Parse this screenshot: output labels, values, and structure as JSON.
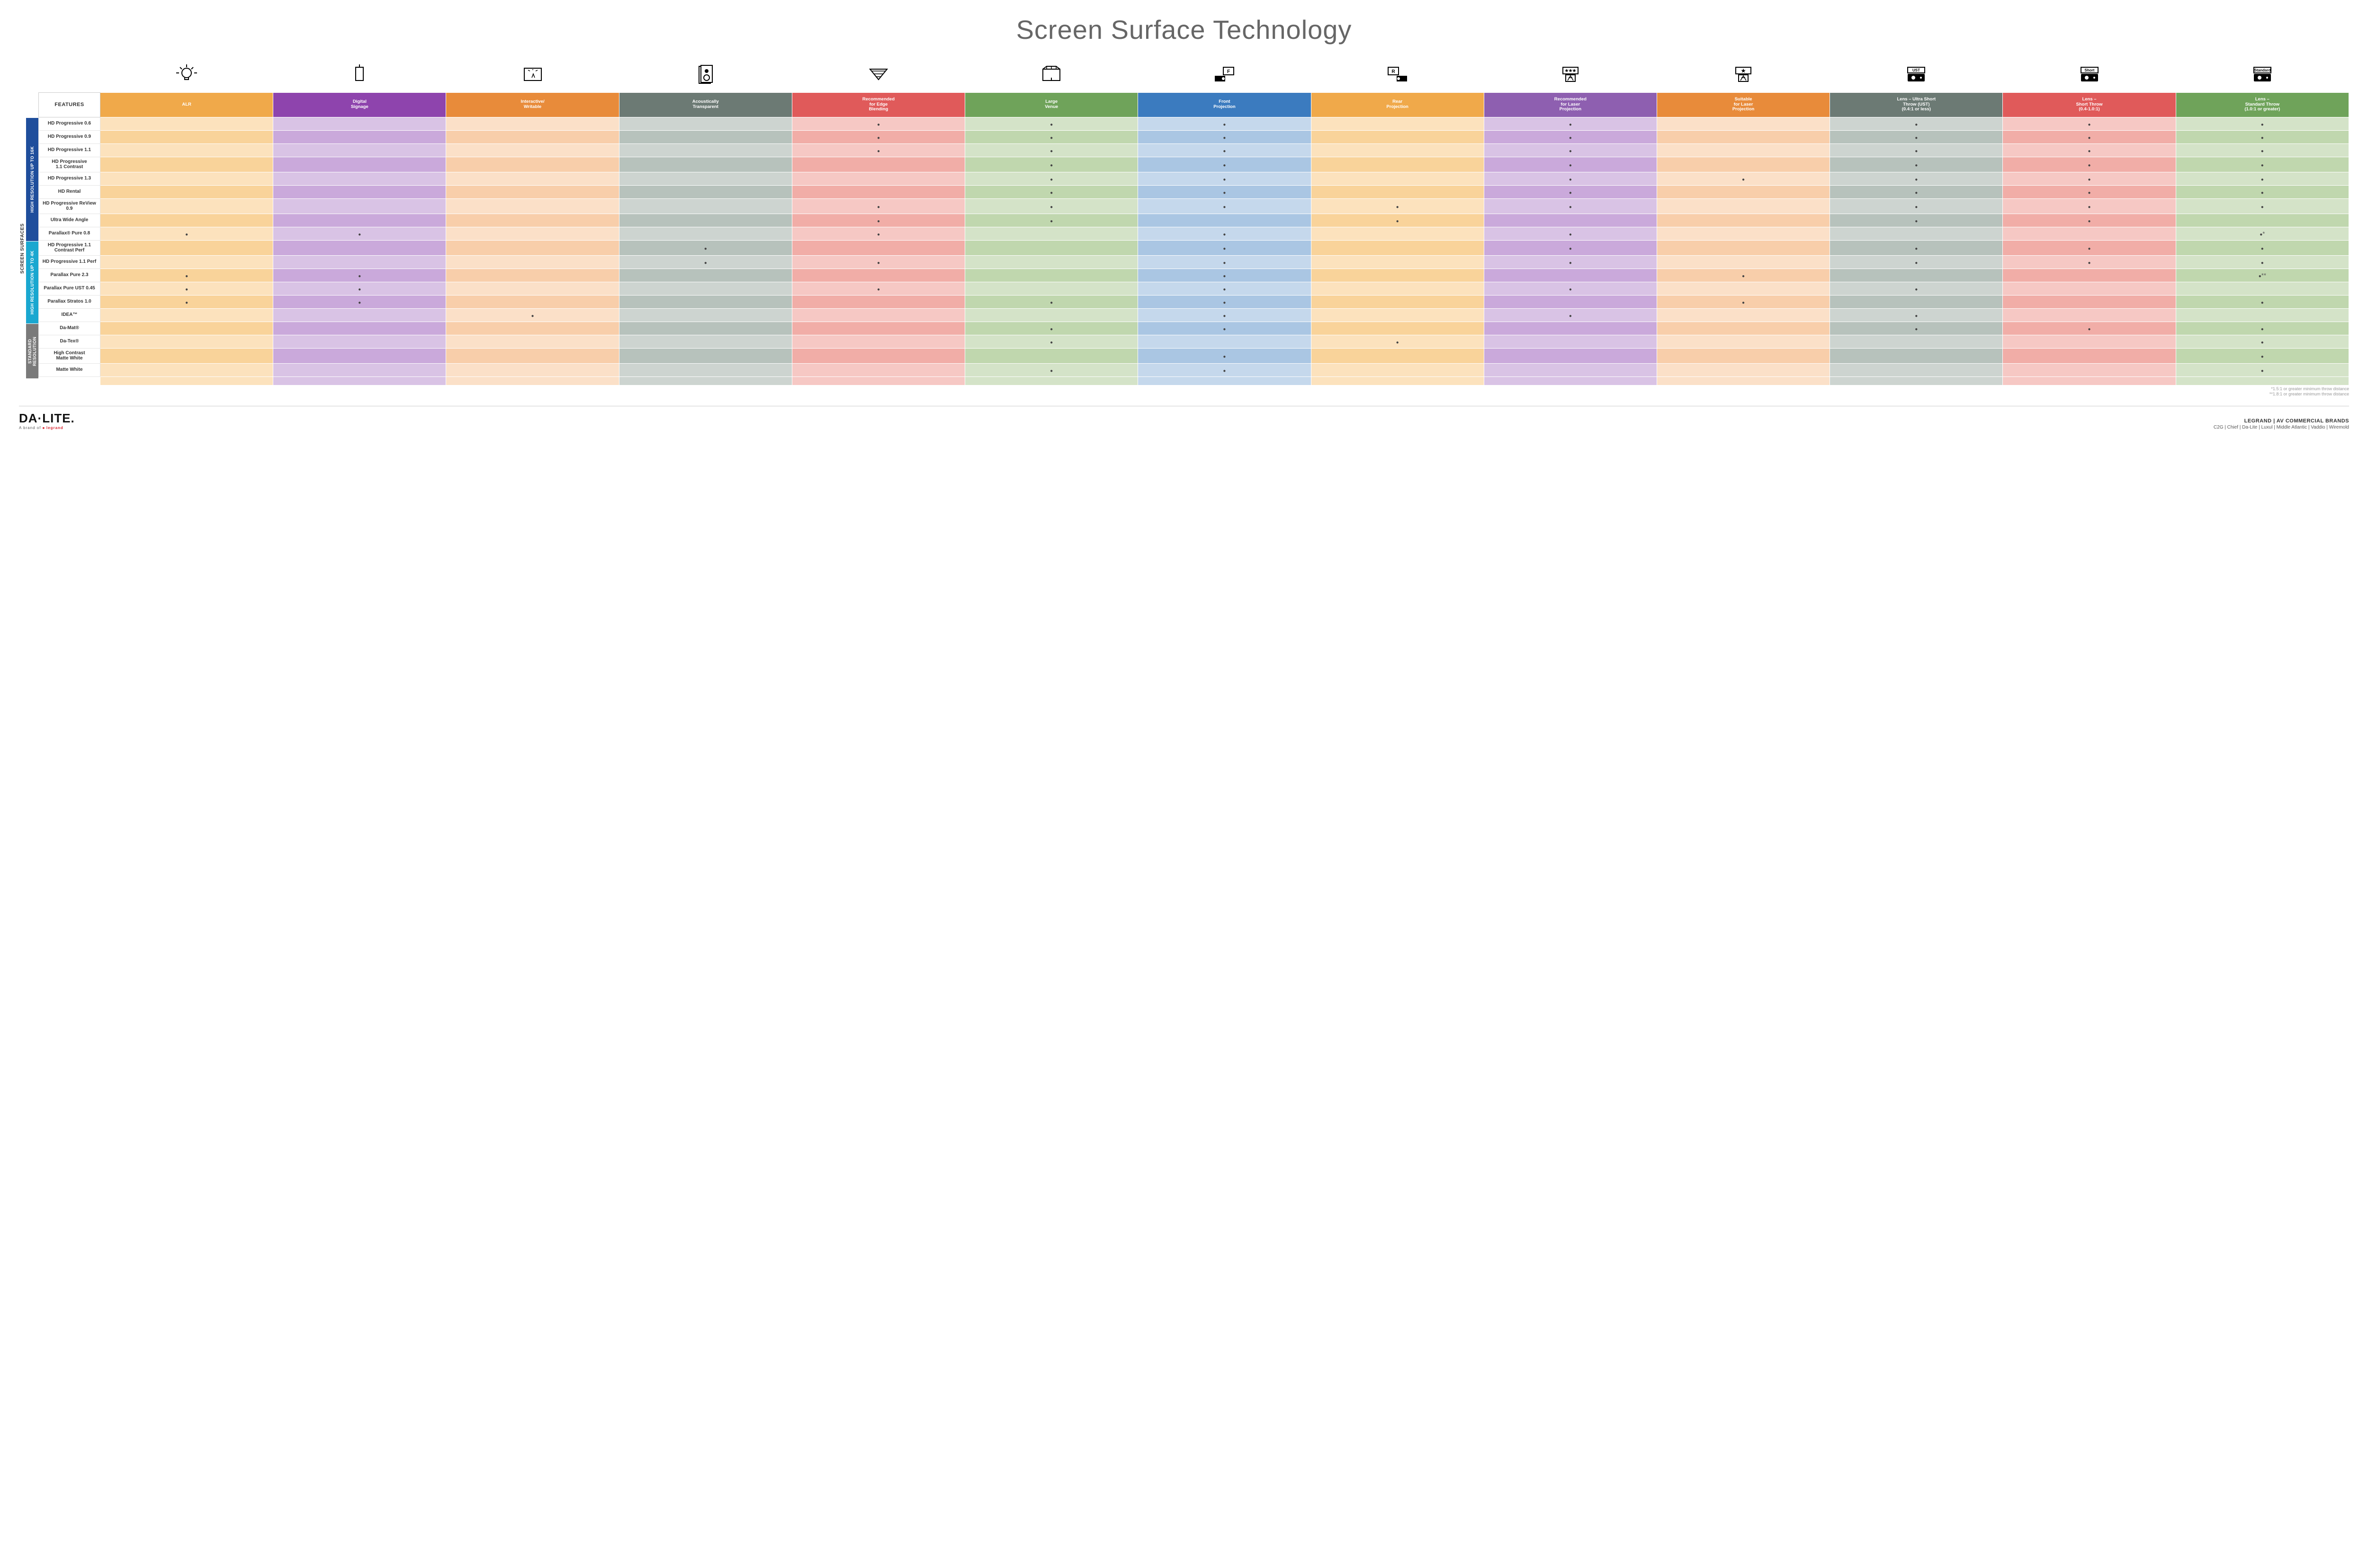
{
  "title": "Screen Surface Technology",
  "features_label": "FEATURES",
  "side_label": "SCREEN SURFACES",
  "colors": {
    "columns": {
      "alr": {
        "hdr": "#f0a94a",
        "light": "#fce2bd",
        "dark": "#f9d39a"
      },
      "signage": {
        "hdr": "#8e44ad",
        "light": "#d9c3e5",
        "dark": "#caa9db"
      },
      "interactive": {
        "hdr": "#e88b3a",
        "light": "#fbe0c8",
        "dark": "#f8ceaa"
      },
      "acoustic": {
        "hdr": "#6c7a74",
        "light": "#cdd4d0",
        "dark": "#b7c2bc"
      },
      "edge": {
        "hdr": "#e05a5a",
        "light": "#f6c8c4",
        "dark": "#f1ada7"
      },
      "venue": {
        "hdr": "#6fa35a",
        "light": "#d4e3c8",
        "dark": "#c0d7ae"
      },
      "front": {
        "hdr": "#3b7bbf",
        "light": "#c5d8ec",
        "dark": "#aac6e3"
      },
      "rear": {
        "hdr": "#f0a94a",
        "light": "#fce2bd",
        "dark": "#f9d39a"
      },
      "reclaser": {
        "hdr": "#8e5fb0",
        "light": "#d9c3e5",
        "dark": "#caa9db"
      },
      "suitlaser": {
        "hdr": "#e88b3a",
        "light": "#fbe0c8",
        "dark": "#f8ceaa"
      },
      "ust": {
        "hdr": "#6c7a74",
        "light": "#cdd4d0",
        "dark": "#b7c2bc"
      },
      "short": {
        "hdr": "#e05a5a",
        "light": "#f6c8c4",
        "dark": "#f1ada7"
      },
      "standard": {
        "hdr": "#6fa35a",
        "light": "#d4e3c8",
        "dark": "#c0d7ae"
      }
    },
    "groups": {
      "g16k": "#1f4e9c",
      "g4k": "#1aa7d0",
      "gstd": "#7a7a7a"
    }
  },
  "columns": [
    {
      "key": "alr",
      "label": "ALR",
      "icon": "bulb"
    },
    {
      "key": "signage",
      "label": "Digital\nSignage",
      "icon": "signage"
    },
    {
      "key": "interactive",
      "label": "Interactive/\nWritable",
      "icon": "touch"
    },
    {
      "key": "acoustic",
      "label": "Acoustically\nTransparent",
      "icon": "speaker"
    },
    {
      "key": "edge",
      "label": "Recommended\nfor Edge\nBlending",
      "icon": "blend"
    },
    {
      "key": "venue",
      "label": "Large\nVenue",
      "icon": "venue"
    },
    {
      "key": "front",
      "label": "Front\nProjection",
      "icon": "front"
    },
    {
      "key": "rear",
      "label": "Rear\nProjection",
      "icon": "rear"
    },
    {
      "key": "reclaser",
      "label": "Recommended\nfor Laser\nProjection",
      "icon": "laser3"
    },
    {
      "key": "suitlaser",
      "label": "Suitable\nfor Laser\nProjection",
      "icon": "laser1"
    },
    {
      "key": "ust",
      "label": "Lens – Ultra Short\nThrow (UST)\n(0.4:1 or less)",
      "icon": "proj-ust"
    },
    {
      "key": "short",
      "label": "Lens –\nShort Throw\n(0.4-1.0:1)",
      "icon": "proj-short"
    },
    {
      "key": "standard",
      "label": "Lens –\nStandard Throw\n(1.0:1 or greater)",
      "icon": "proj-std"
    }
  ],
  "groups": [
    {
      "key": "g16k",
      "label": "HIGH RESOLUTION UP TO 16K",
      "rows": 9
    },
    {
      "key": "g4k",
      "label": "HIGH RESOLUTION UP TO 4K",
      "rows": 6
    },
    {
      "key": "gstd",
      "label": "STANDARD\nRESOLUTION",
      "rows": 4
    }
  ],
  "rows": [
    {
      "name": "HD Progressive 0.6",
      "cells": {
        "edge": "●",
        "venue": "●",
        "front": "●",
        "reclaser": "●",
        "ust": "●",
        "short": "●",
        "standard": "●"
      }
    },
    {
      "name": "HD Progressive 0.9",
      "cells": {
        "edge": "●",
        "venue": "●",
        "front": "●",
        "reclaser": "●",
        "ust": "●",
        "short": "●",
        "standard": "●"
      }
    },
    {
      "name": "HD Progressive 1.1",
      "cells": {
        "edge": "●",
        "venue": "●",
        "front": "●",
        "reclaser": "●",
        "ust": "●",
        "short": "●",
        "standard": "●"
      }
    },
    {
      "name": "HD Progressive\n1.1 Contrast",
      "cells": {
        "venue": "●",
        "front": "●",
        "reclaser": "●",
        "ust": "●",
        "short": "●",
        "standard": "●"
      }
    },
    {
      "name": "HD Progressive 1.3",
      "cells": {
        "venue": "●",
        "front": "●",
        "reclaser": "●",
        "suitlaser": "●",
        "ust": "●",
        "short": "●",
        "standard": "●"
      }
    },
    {
      "name": "HD Rental",
      "cells": {
        "venue": "●",
        "front": "●",
        "reclaser": "●",
        "ust": "●",
        "short": "●",
        "standard": "●"
      }
    },
    {
      "name": "HD Progressive ReView 0.9",
      "cells": {
        "edge": "●",
        "venue": "●",
        "front": "●",
        "rear": "●",
        "reclaser": "●",
        "ust": "●",
        "short": "●",
        "standard": "●"
      }
    },
    {
      "name": "Ultra Wide Angle",
      "cells": {
        "edge": "●",
        "venue": "●",
        "rear": "●",
        "ust": "●",
        "short": "●"
      }
    },
    {
      "name": "Parallax® Pure 0.8",
      "cells": {
        "alr": "●",
        "signage": "●",
        "edge": "●",
        "front": "●",
        "reclaser": "●",
        "standard": "●*"
      }
    },
    {
      "name": "HD Progressive 1.1\nContrast Perf",
      "cells": {
        "acoustic": "●",
        "front": "●",
        "reclaser": "●",
        "ust": "●",
        "short": "●",
        "standard": "●"
      }
    },
    {
      "name": "HD Progressive 1.1 Perf",
      "cells": {
        "acoustic": "●",
        "edge": "●",
        "front": "●",
        "reclaser": "●",
        "ust": "●",
        "short": "●",
        "standard": "●"
      }
    },
    {
      "name": "Parallax Pure 2.3",
      "cells": {
        "alr": "●",
        "signage": "●",
        "front": "●",
        "suitlaser": "●",
        "standard": "●**"
      }
    },
    {
      "name": "Parallax Pure UST 0.45",
      "cells": {
        "alr": "●",
        "signage": "●",
        "edge": "●",
        "front": "●",
        "reclaser": "●",
        "ust": "●"
      }
    },
    {
      "name": "Parallax Stratos 1.0",
      "cells": {
        "alr": "●",
        "signage": "●",
        "venue": "●",
        "front": "●",
        "suitlaser": "●",
        "standard": "●"
      }
    },
    {
      "name": "IDEA™",
      "cells": {
        "interactive": "●",
        "front": "●",
        "reclaser": "●",
        "ust": "●"
      }
    },
    {
      "name": "Da-Mat®",
      "cells": {
        "venue": "●",
        "front": "●",
        "ust": "●",
        "short": "●",
        "standard": "●"
      }
    },
    {
      "name": "Da-Tex®",
      "cells": {
        "venue": "●",
        "rear": "●",
        "standard": "●"
      }
    },
    {
      "name": "High Contrast\nMatte White",
      "cells": {
        "front": "●",
        "standard": "●"
      }
    },
    {
      "name": "Matte White",
      "cells": {
        "venue": "●",
        "front": "●",
        "standard": "●"
      }
    }
  ],
  "footnotes": [
    "*1.5:1 or greater minimum throw distance",
    "**1.8:1 or greater minimum throw distance"
  ],
  "footer": {
    "logo": "DA·LITE.",
    "logo_sub_pre": "A brand of ",
    "logo_sub_brand": "legrand",
    "brands_line1": "LEGRAND | AV COMMERCIAL BRANDS",
    "brands_line2": "C2G  |  Chief  |  Da-Lite  |  Luxul  |  Middle Atlantic  |  Vaddio  |  Wiremold"
  }
}
